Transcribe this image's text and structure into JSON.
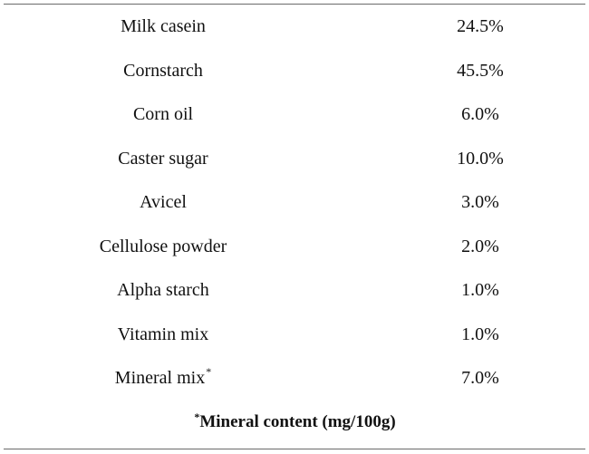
{
  "table": {
    "rows": [
      {
        "ingredient": "Milk casein",
        "percent": "24.5%"
      },
      {
        "ingredient": "Cornstarch",
        "percent": "45.5%"
      },
      {
        "ingredient": "Corn oil",
        "percent": "6.0%"
      },
      {
        "ingredient": "Caster sugar",
        "percent": "10.0%"
      },
      {
        "ingredient": "Avicel",
        "percent": "3.0%"
      },
      {
        "ingredient": "Cellulose powder",
        "percent": "2.0%"
      },
      {
        "ingredient": "Alpha starch",
        "percent": "1.0%"
      },
      {
        "ingredient": "Vitamin mix",
        "percent": "1.0%"
      },
      {
        "ingredient": "Mineral mix",
        "percent": "7.0%",
        "marker": "*"
      }
    ],
    "footnote": {
      "marker": "*",
      "text": "Mineral content (mg/100g)"
    }
  }
}
